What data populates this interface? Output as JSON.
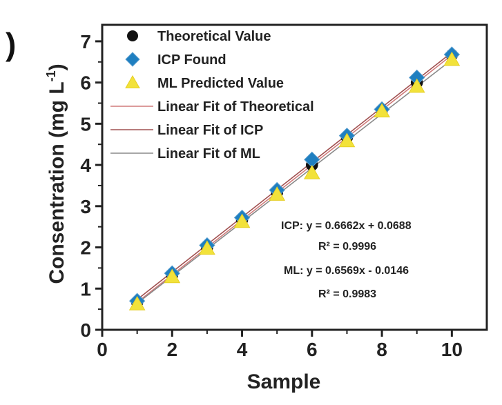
{
  "panel_label": ")",
  "chart_data": {
    "type": "scatter",
    "xlabel": "Sample",
    "ylabel": "Consentration (mg L",
    "ylabel_sup": "-1",
    "ylabel_end": ")",
    "xlim": [
      0,
      11
    ],
    "ylim": [
      0,
      7.4
    ],
    "xticks": [
      0,
      2,
      4,
      6,
      8,
      10
    ],
    "yticks": [
      0,
      1,
      2,
      3,
      4,
      5,
      6,
      7
    ],
    "grid": false,
    "legend_position": "top-left",
    "series": [
      {
        "name": "Theoretical Value",
        "marker": "circle",
        "color": "#111111",
        "x": [
          1,
          2,
          3,
          4,
          5,
          6,
          7,
          8,
          9,
          10
        ],
        "y": [
          0.67,
          1.33,
          2.0,
          2.67,
          3.33,
          4.0,
          4.67,
          5.33,
          6.0,
          6.67
        ]
      },
      {
        "name": "ICP Found",
        "marker": "diamond",
        "color": "#1f7fc0",
        "x": [
          1,
          2,
          3,
          4,
          5,
          6,
          7,
          8,
          9,
          10
        ],
        "y": [
          0.7,
          1.37,
          2.05,
          2.72,
          3.39,
          4.13,
          4.71,
          5.35,
          6.12,
          6.68
        ]
      },
      {
        "name": "ML Predicted Value",
        "marker": "triangle",
        "color": "#f2e23a",
        "x": [
          1,
          2,
          3,
          4,
          5,
          6,
          7,
          8,
          9,
          10
        ],
        "y": [
          0.62,
          1.28,
          1.97,
          2.62,
          3.28,
          3.8,
          4.58,
          5.3,
          5.9,
          6.55
        ]
      }
    ],
    "fits": [
      {
        "name": "Linear Fit of Theoretical",
        "color": "#d07a7a",
        "slope": 0.6667,
        "intercept": 0.0
      },
      {
        "name": "Linear Fit of ICP",
        "color": "#a05050",
        "slope": 0.6662,
        "intercept": 0.0688
      },
      {
        "name": "Linear Fit of ML",
        "color": "#8a8a8a",
        "slope": 0.6569,
        "intercept": -0.0146
      }
    ],
    "annotations": [
      "ICP:  y = 0.6662x + 0.0688",
      "R² = 0.9996",
      "ML:  y = 0.6569x - 0.0146",
      "R² = 0.9983"
    ]
  }
}
